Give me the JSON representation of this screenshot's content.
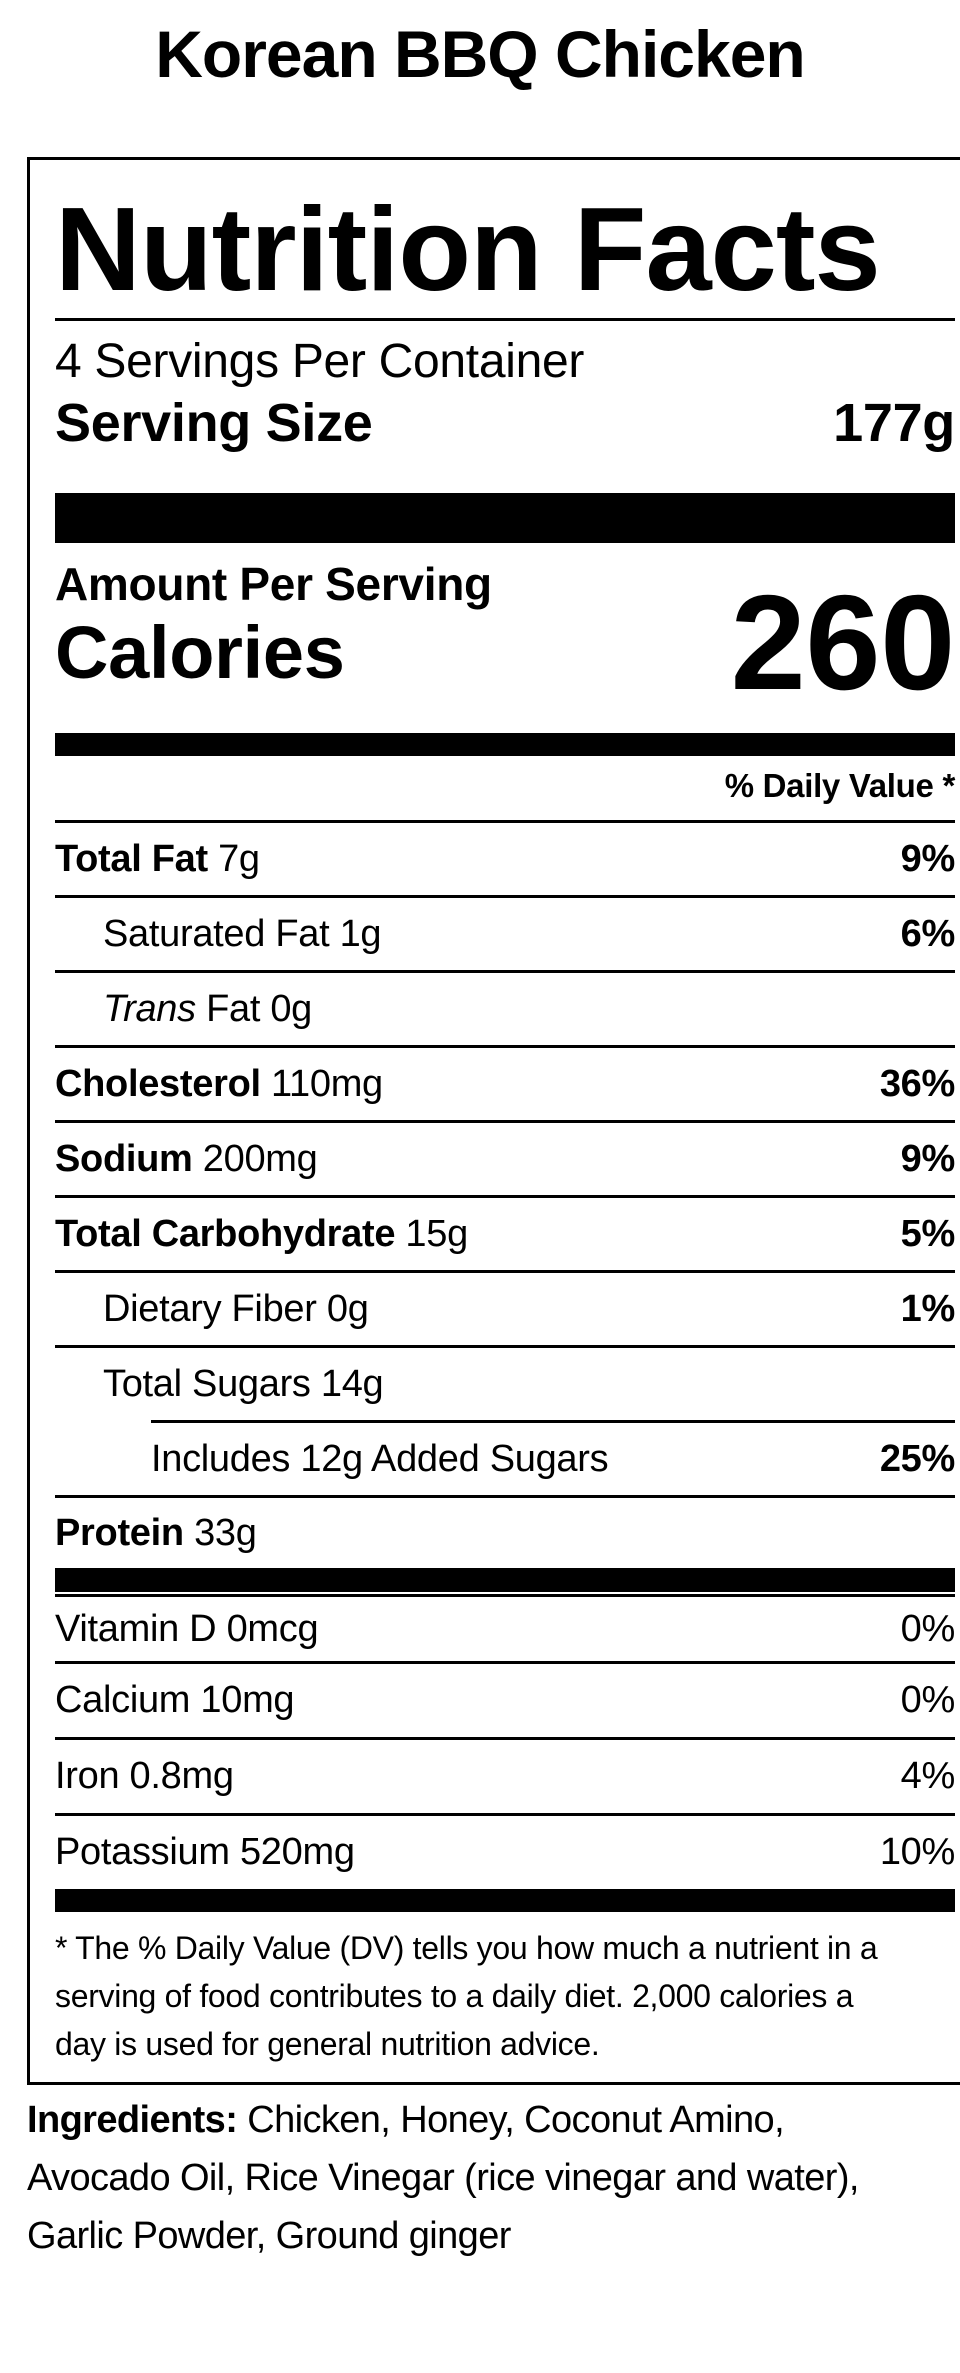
{
  "colors": {
    "text": "#000000",
    "background": "#ffffff"
  },
  "recipe_title": "Korean BBQ Chicken",
  "label": {
    "heading": "Nutrition Facts",
    "servings_per_container": "4 Servings Per Container",
    "serving_size": {
      "label": "Serving Size",
      "value": "177g"
    },
    "amount_per_serving": "Amount Per Serving",
    "calories": {
      "label": "Calories",
      "value": "260"
    },
    "daily_value_header": "% Daily Value *",
    "nutrients": [
      {
        "bold": "Total Fat",
        "text": " 7g",
        "pct": "9%"
      },
      {
        "text": "Saturated Fat 1g",
        "pct": "6%"
      },
      {
        "italic": "Trans",
        "text": " Fat 0g"
      },
      {
        "bold": "Cholesterol",
        "text": " 110mg",
        "pct": "36%"
      },
      {
        "bold": "Sodium",
        "text": " 200mg",
        "pct": "9%"
      },
      {
        "bold": "Total Carbohydrate",
        "text": " 15g",
        "pct": "5%"
      },
      {
        "text": "Dietary Fiber 0g",
        "pct": "1%"
      },
      {
        "text": "Total Sugars 14g"
      },
      {
        "text": "Includes 12g Added Sugars",
        "pct": "25%"
      },
      {
        "bold": "Protein",
        "text": " 33g"
      }
    ],
    "vitamins": [
      {
        "text": "Vitamin D 0mcg",
        "pct": "0%"
      },
      {
        "text": "Calcium 10mg",
        "pct": "0%"
      },
      {
        "text": "Iron 0.8mg",
        "pct": "4%"
      },
      {
        "text": "Potassium 520mg",
        "pct": "10%"
      }
    ],
    "footnote_lines": [
      "* The % Daily Value (DV) tells you how much a nutrient in a",
      "serving of food contributes to a daily diet. 2,000 calories a",
      "day is used for general nutrition advice."
    ]
  },
  "ingredients": {
    "label": "Ingredients:",
    "first_line_rest": " Chicken, Honey, Coconut Amino,",
    "lines": [
      "Avocado Oil, Rice Vinegar (rice vinegar and water),",
      "Garlic Powder, Ground ginger"
    ]
  }
}
